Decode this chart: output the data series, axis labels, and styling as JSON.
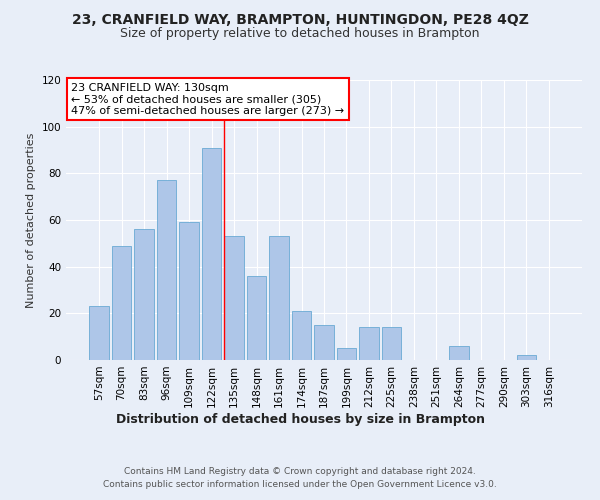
{
  "title": "23, CRANFIELD WAY, BRAMPTON, HUNTINGDON, PE28 4QZ",
  "subtitle": "Size of property relative to detached houses in Brampton",
  "xlabel": "Distribution of detached houses by size in Brampton",
  "ylabel": "Number of detached properties",
  "categories": [
    "57sqm",
    "70sqm",
    "83sqm",
    "96sqm",
    "109sqm",
    "122sqm",
    "135sqm",
    "148sqm",
    "161sqm",
    "174sqm",
    "187sqm",
    "199sqm",
    "212sqm",
    "225sqm",
    "238sqm",
    "251sqm",
    "264sqm",
    "277sqm",
    "290sqm",
    "303sqm",
    "316sqm"
  ],
  "values": [
    23,
    49,
    56,
    77,
    59,
    91,
    53,
    36,
    53,
    21,
    15,
    5,
    14,
    14,
    0,
    0,
    6,
    0,
    0,
    2,
    0
  ],
  "bar_color": "#aec6e8",
  "bar_edge_color": "#6aaad4",
  "background_color": "#e8eef8",
  "fig_background_color": "#e8eef8",
  "annotation_text": "23 CRANFIELD WAY: 130sqm\n← 53% of detached houses are smaller (305)\n47% of semi-detached houses are larger (273) →",
  "annotation_box_color": "white",
  "annotation_box_edge_color": "red",
  "vline_color": "red",
  "ylim": [
    0,
    120
  ],
  "yticks": [
    0,
    20,
    40,
    60,
    80,
    100,
    120
  ],
  "vline_index": 5.575,
  "footer": "Contains HM Land Registry data © Crown copyright and database right 2024.\nContains public sector information licensed under the Open Government Licence v3.0.",
  "title_fontsize": 10,
  "subtitle_fontsize": 9,
  "xlabel_fontsize": 9,
  "ylabel_fontsize": 8,
  "tick_fontsize": 7.5,
  "annotation_fontsize": 8,
  "footer_fontsize": 6.5
}
